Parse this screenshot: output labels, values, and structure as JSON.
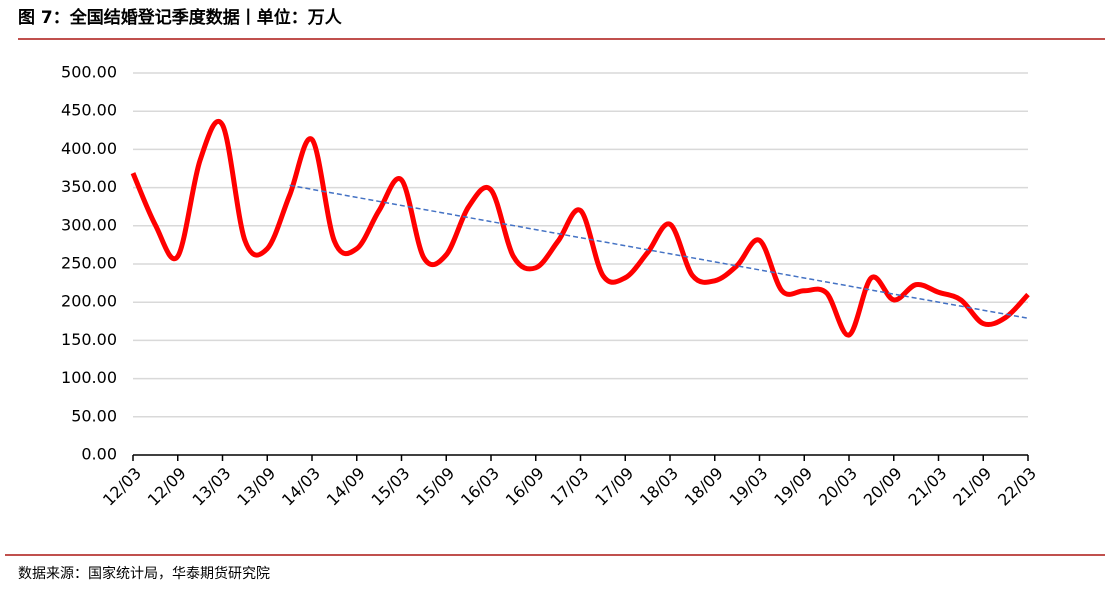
{
  "title": "图 7：全国结婚登记季度数据丨单位：万人",
  "source": "数据来源：国家统计局，华泰期货研究院",
  "chart_data": {
    "type": "line",
    "categories": [
      "12/03",
      null,
      "12/09",
      null,
      "13/03",
      null,
      "13/09",
      null,
      "14/03",
      null,
      "14/09",
      null,
      "15/03",
      null,
      "15/09",
      null,
      "16/03",
      null,
      "16/09",
      null,
      "17/03",
      null,
      "17/09",
      null,
      "18/03",
      null,
      "18/09",
      null,
      "19/03",
      null,
      "19/09",
      null,
      "20/03",
      null,
      "20/09",
      null,
      "21/03",
      null,
      "21/09",
      null,
      "22/03"
    ],
    "series": [
      {
        "color": "#ff0000",
        "values": [
          369,
          301,
          260,
          386,
          432,
          281,
          270,
          340,
          413,
          280,
          270,
          320,
          360,
          258,
          262,
          325,
          347,
          260,
          245,
          280,
          320,
          235,
          232,
          265,
          302,
          235,
          228,
          248,
          281,
          215,
          215,
          212,
          157,
          232,
          203,
          223,
          213,
          203,
          172,
          180,
          210
        ]
      },
      {
        "color": "#4472c4",
        "dashed": true,
        "values": [
          null,
          null,
          null,
          null,
          null,
          null,
          null,
          353,
          347.7,
          342.5,
          337.2,
          331.9,
          326.6,
          321.4,
          316.1,
          310.8,
          305.5,
          300.3,
          295,
          289.7,
          284.4,
          279.2,
          273.9,
          268.6,
          263.4,
          258.1,
          252.8,
          247.5,
          242.3,
          237,
          231.7,
          226.4,
          221.2,
          215.9,
          210.6,
          205.3,
          200.1,
          194.8,
          189.5,
          184.3,
          179
        ]
      }
    ],
    "ylim": [
      0,
      500
    ],
    "yticks": [
      {
        "value": 0,
        "label": "0.00"
      },
      {
        "value": 50,
        "label": "50.00"
      },
      {
        "value": 100,
        "label": "100.00"
      },
      {
        "value": 150,
        "label": "150.00"
      },
      {
        "value": 200,
        "label": "200.00"
      },
      {
        "value": 250,
        "label": "250.00"
      },
      {
        "value": 300,
        "label": "300.00"
      },
      {
        "value": 350,
        "label": "350.00"
      },
      {
        "value": 400,
        "label": "400.00"
      },
      {
        "value": 450,
        "label": "450.00"
      },
      {
        "value": 500,
        "label": "500.00"
      }
    ],
    "grid": true
  }
}
